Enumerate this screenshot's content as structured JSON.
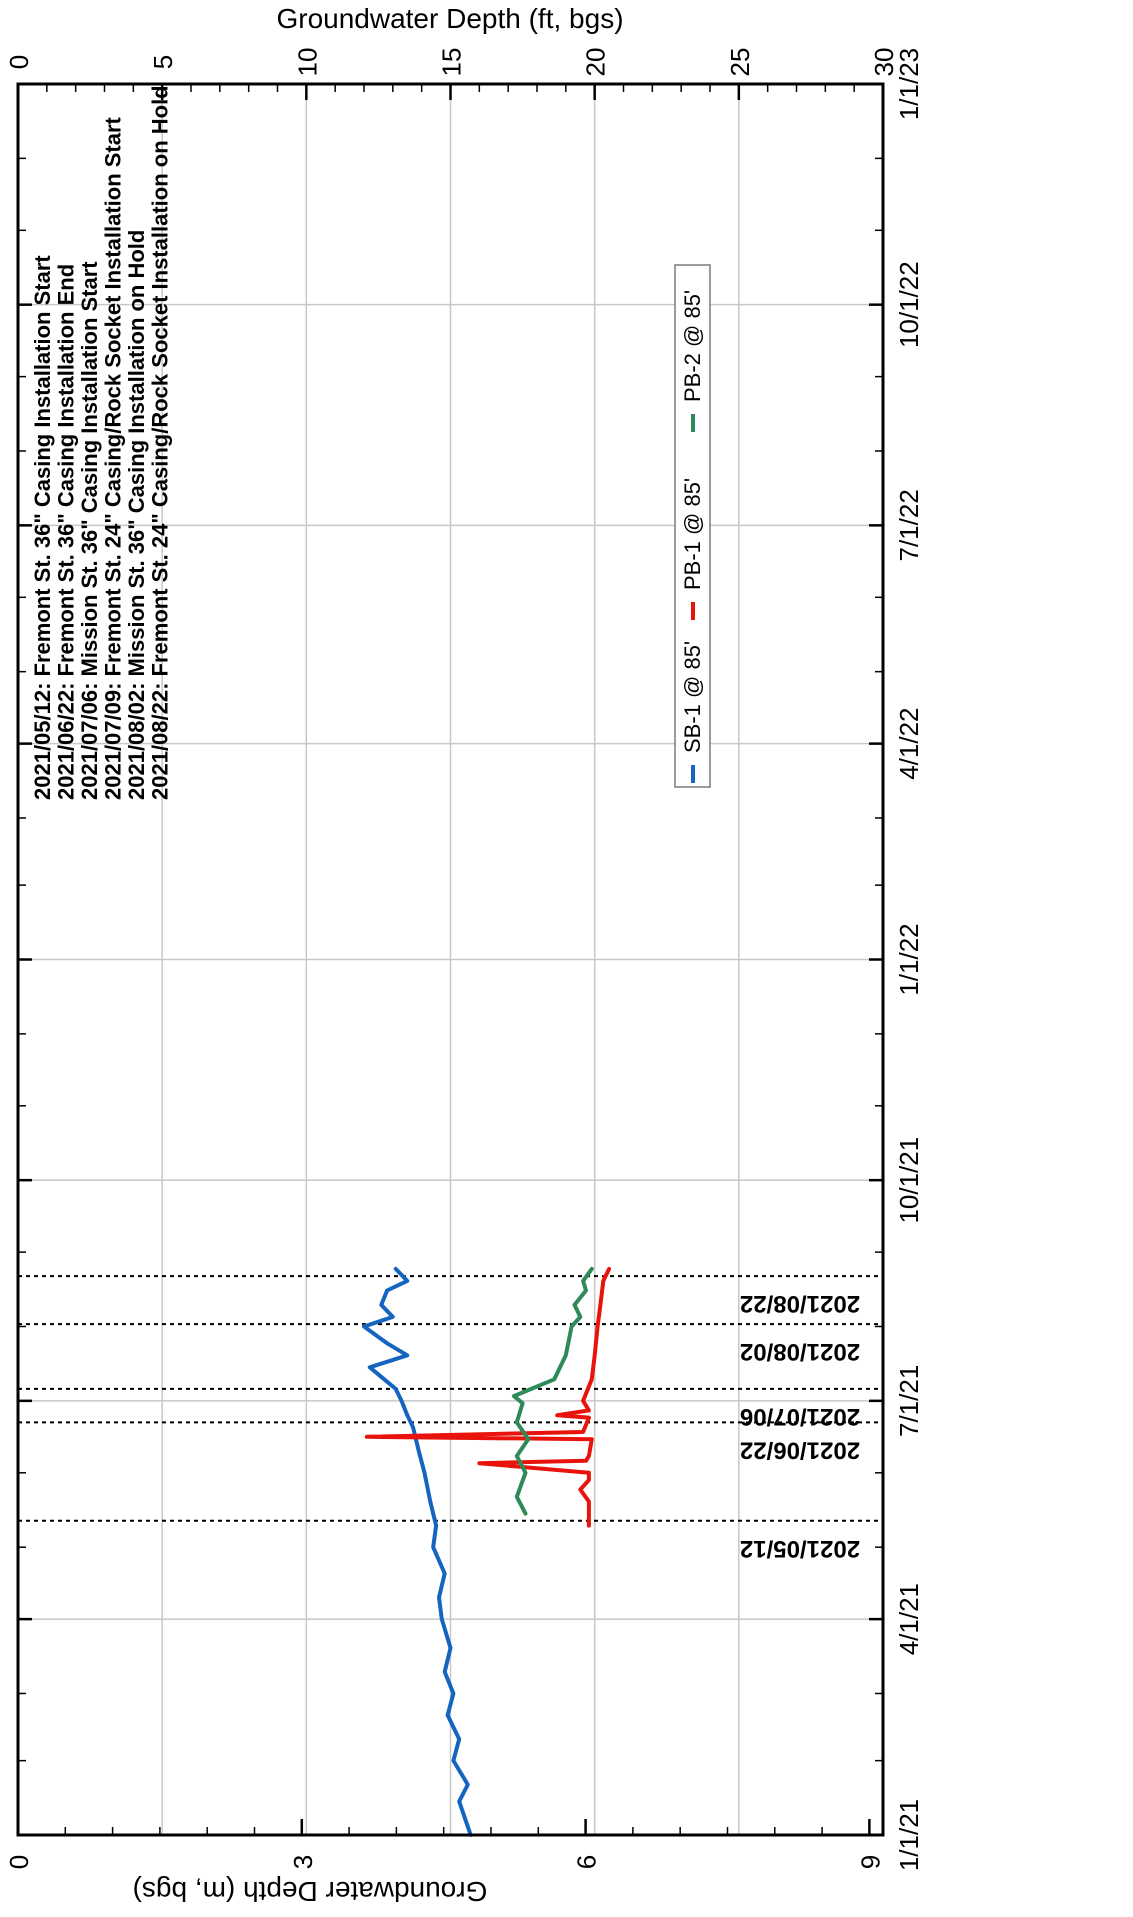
{
  "chart_data": {
    "type": "line",
    "orientation": "rotated-90-cw",
    "x_axis": {
      "label": "",
      "type": "date",
      "range": [
        "2021-01-01",
        "2023-01-01"
      ],
      "ticks": [
        "1/1/21",
        "4/1/21",
        "7/1/21",
        "10/1/21",
        "1/1/22",
        "4/1/22",
        "7/1/22",
        "10/1/22",
        "1/1/23"
      ],
      "tick_dates": [
        "2021-01-01",
        "2021-04-01",
        "2021-07-01",
        "2021-10-01",
        "2022-01-01",
        "2022-04-01",
        "2022-07-01",
        "2022-10-01",
        "2023-01-01"
      ]
    },
    "y_axis_primary": {
      "label": "Groundwater Depth (ft, bgs)",
      "range": [
        0,
        30
      ],
      "ticks": [
        "0",
        "5",
        "10",
        "15",
        "20",
        "25",
        "30"
      ]
    },
    "y_axis_secondary": {
      "label": "Groundwater Depth (m, bgs)",
      "range": [
        0,
        9.144
      ],
      "ticks": [
        "0",
        "3",
        "6",
        "9"
      ]
    },
    "grid": true,
    "legend": {
      "placement": "center",
      "entries": [
        "SB-1 @ 85'",
        "PB-1 @ 85'",
        "PB-2 @ 85'"
      ]
    },
    "series": [
      {
        "name": "SB-1 @ 85'",
        "color": "#1565c0",
        "x": [
          "2021-01-01",
          "2021-01-08",
          "2021-01-15",
          "2021-01-22",
          "2021-02-01",
          "2021-02-10",
          "2021-02-20",
          "2021-03-01",
          "2021-03-10",
          "2021-03-20",
          "2021-04-01",
          "2021-04-10",
          "2021-04-20",
          "2021-05-01",
          "2021-05-10",
          "2021-05-20",
          "2021-06-01",
          "2021-06-10",
          "2021-06-20",
          "2021-06-25",
          "2021-07-01",
          "2021-07-06",
          "2021-07-15",
          "2021-07-20",
          "2021-07-25",
          "2021-08-01",
          "2021-08-05",
          "2021-08-10",
          "2021-08-16",
          "2021-08-20",
          "2021-08-25"
        ],
        "y": [
          15.7,
          15.5,
          15.3,
          15.6,
          15.1,
          15.3,
          14.9,
          15.1,
          14.8,
          15.0,
          14.7,
          14.6,
          14.8,
          14.4,
          14.5,
          14.3,
          14.1,
          13.9,
          13.7,
          13.5,
          13.3,
          13.1,
          12.2,
          13.5,
          12.8,
          12.0,
          13.0,
          12.6,
          12.8,
          13.5,
          13.1
        ]
      },
      {
        "name": "PB-1 @ 85'",
        "color": "#e8140c",
        "x": [
          "2021-05-10",
          "2021-05-20",
          "2021-05-25",
          "2021-05-29",
          "2021-06-01",
          "2021-06-05",
          "2021-06-06",
          "2021-06-08",
          "2021-06-15",
          "2021-06-16",
          "2021-06-18",
          "2021-06-24",
          "2021-06-25",
          "2021-06-27",
          "2021-07-01",
          "2021-07-10",
          "2021-07-20",
          "2021-08-01",
          "2021-08-10",
          "2021-08-20",
          "2021-08-25"
        ],
        "y": [
          19.8,
          19.8,
          19.5,
          19.8,
          19.8,
          16.0,
          19.7,
          19.8,
          19.9,
          12.1,
          19.6,
          19.8,
          18.7,
          19.8,
          19.6,
          19.9,
          20.0,
          20.1,
          20.2,
          20.3,
          20.5
        ]
      },
      {
        "name": "PB-2 @ 85'",
        "color": "#2e8b57",
        "x": [
          "2021-05-15",
          "2021-05-22",
          "2021-06-01",
          "2021-06-08",
          "2021-06-15",
          "2021-06-22",
          "2021-06-30",
          "2021-07-03",
          "2021-07-06",
          "2021-07-10",
          "2021-07-20",
          "2021-08-01",
          "2021-08-05",
          "2021-08-10",
          "2021-08-16",
          "2021-08-20",
          "2021-08-25"
        ],
        "y": [
          17.6,
          17.3,
          17.6,
          17.3,
          17.7,
          17.3,
          17.5,
          17.2,
          17.8,
          18.6,
          19.0,
          19.2,
          19.5,
          19.3,
          19.7,
          19.6,
          19.9
        ]
      }
    ],
    "events": [
      {
        "date": "2021-05-12",
        "label": "2021/05/12"
      },
      {
        "date": "2021-06-22",
        "label": "2021/06/22"
      },
      {
        "date": "2021-07-06",
        "label": "2021/07/06"
      },
      {
        "date": "2021-08-02",
        "label": "2021/08/02"
      },
      {
        "date": "2021-08-22",
        "label": "2021/08/22"
      }
    ],
    "annotations": [
      "2021/05/12:  Fremont St. 36\" Casing Installation Start",
      "2021/06/22:  Fremont St. 36\" Casing Installation End",
      "2021/07/06:  Mission St.  36\" Casing Installation Start",
      "2021/07/09:  Fremont St. 24\" Casing/Rock Socket Installation Start",
      "2021/08/02:  Mission St.  36\" Casing Installation on Hold",
      "2021/08/22:  Fremont St. 24\" Casing/Rock Socket Installation on Hold"
    ]
  }
}
